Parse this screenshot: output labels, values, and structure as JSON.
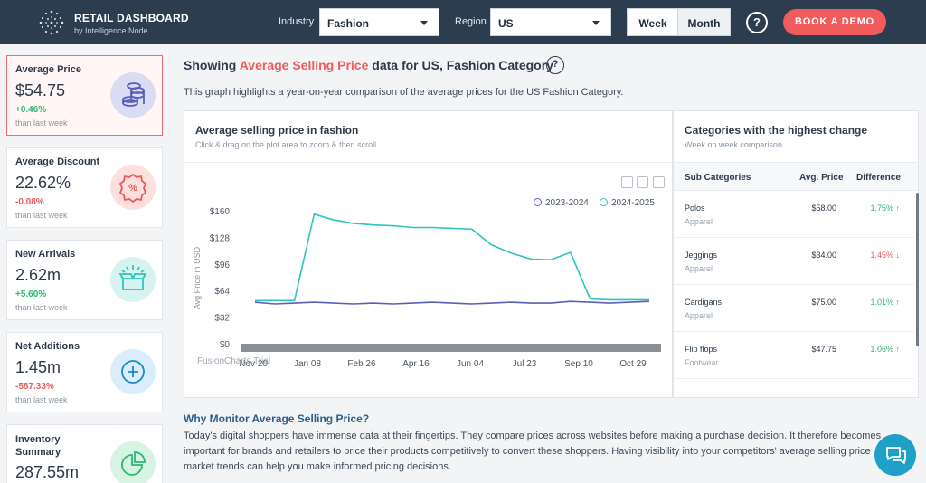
{
  "header": {
    "brand_title": "RETAIL DASHBOARD",
    "brand_sub": "by Intelligence Node",
    "industry_label": "Industry",
    "industry_value": "Fashion",
    "region_label": "Region",
    "region_value": "US",
    "week_label": "Week",
    "month_label": "Month",
    "help_label": "?",
    "demo_label": "BOOK A DEMO"
  },
  "sidebar": {
    "cards": [
      {
        "title": "Average Price",
        "value": "$54.75",
        "change": "+0.46%",
        "sub": "than last week",
        "icon": "coins-icon"
      },
      {
        "title": "Average Discount",
        "value": "22.62%",
        "change": "-0.08%",
        "sub": "than last week",
        "icon": "discount-badge-icon"
      },
      {
        "title": "New Arrivals",
        "value": "2.62m",
        "change": "+5.60%",
        "sub": "than last week",
        "icon": "open-box-icon"
      },
      {
        "title": "Net Additions",
        "value": "1.45m",
        "change": "-587.33%",
        "sub": "than last week",
        "icon": "plus-circle-icon"
      },
      {
        "title": "Inventory Summary",
        "value": "287.55m",
        "icon": "pie-chart-icon"
      }
    ]
  },
  "main": {
    "title_prefix": "Showing ",
    "title_highlight": "Average Selling Price",
    "title_suffix": " data for US, Fashion Category",
    "description": "This graph highlights a year-on-year comparison of the average prices for the US Fashion Category."
  },
  "chart_panel": {
    "title": "Average selling price in fashion",
    "subtitle": "Click & drag on the plot area to zoom & then scroll",
    "watermark": "FusionCharts Trial"
  },
  "chart_data": {
    "type": "line",
    "ylabel": "Avg Price in USD",
    "ylim": [
      0,
      160
    ],
    "yticks": [
      "$0",
      "$32",
      "$64",
      "$96",
      "$128",
      "$160"
    ],
    "xticks": [
      "Nov 20",
      "Jan 08",
      "Feb 26",
      "Apr 16",
      "Jun 04",
      "Jul 23",
      "Sep 10",
      "Oct 29"
    ],
    "series": [
      {
        "name": "2023-2024",
        "color": "#5b5fb6",
        "values": [
          51,
          49,
          50,
          51,
          50,
          49,
          50,
          49,
          50,
          51,
          50,
          49,
          50,
          51,
          50,
          50,
          52,
          51,
          50,
          51,
          52
        ]
      },
      {
        "name": "2024-2025",
        "color": "#2ec5bb",
        "values": [
          53,
          53,
          53,
          157,
          150,
          146,
          144,
          143,
          141,
          141,
          140,
          139,
          120,
          110,
          103,
          102,
          111,
          55,
          54,
          54,
          54
        ]
      }
    ]
  },
  "categories_panel": {
    "title": "Categories with the highest change",
    "subtitle": "Week on week comparison",
    "columns": [
      "Sub Categories",
      "Avg. Price",
      "Difference"
    ],
    "rows": [
      {
        "name": "Polos",
        "group": "Apparel",
        "price": "$58.00",
        "diff": "1.75%",
        "arrow": "↑"
      },
      {
        "name": "Jeggings",
        "group": "Apparel",
        "price": "$34.00",
        "diff": "1.45%",
        "arrow": "↓"
      },
      {
        "name": "Cardigans",
        "group": "Apparel",
        "price": "$75.00",
        "diff": "1.01%",
        "arrow": "↑"
      },
      {
        "name": "Flip flops",
        "group": "Footwear",
        "price": "$47.75",
        "diff": "1.06%",
        "arrow": "↑"
      }
    ]
  },
  "why": {
    "title": "Why Monitor Average Selling Price?",
    "text": "Today's digital shoppers have immense data at their fingertips. They compare prices across websites before making a purchase decision. It therefore becomes important for brands and retailers to price their products competitively to convert these shoppers. Having visibility into your competitors' average selling price market trends can help you make informed pricing decisions."
  },
  "colors": {
    "header_bg": "#2d3d50",
    "accent": "#f15b5b",
    "positive": "#2fb670",
    "negative": "#e95a5a"
  }
}
